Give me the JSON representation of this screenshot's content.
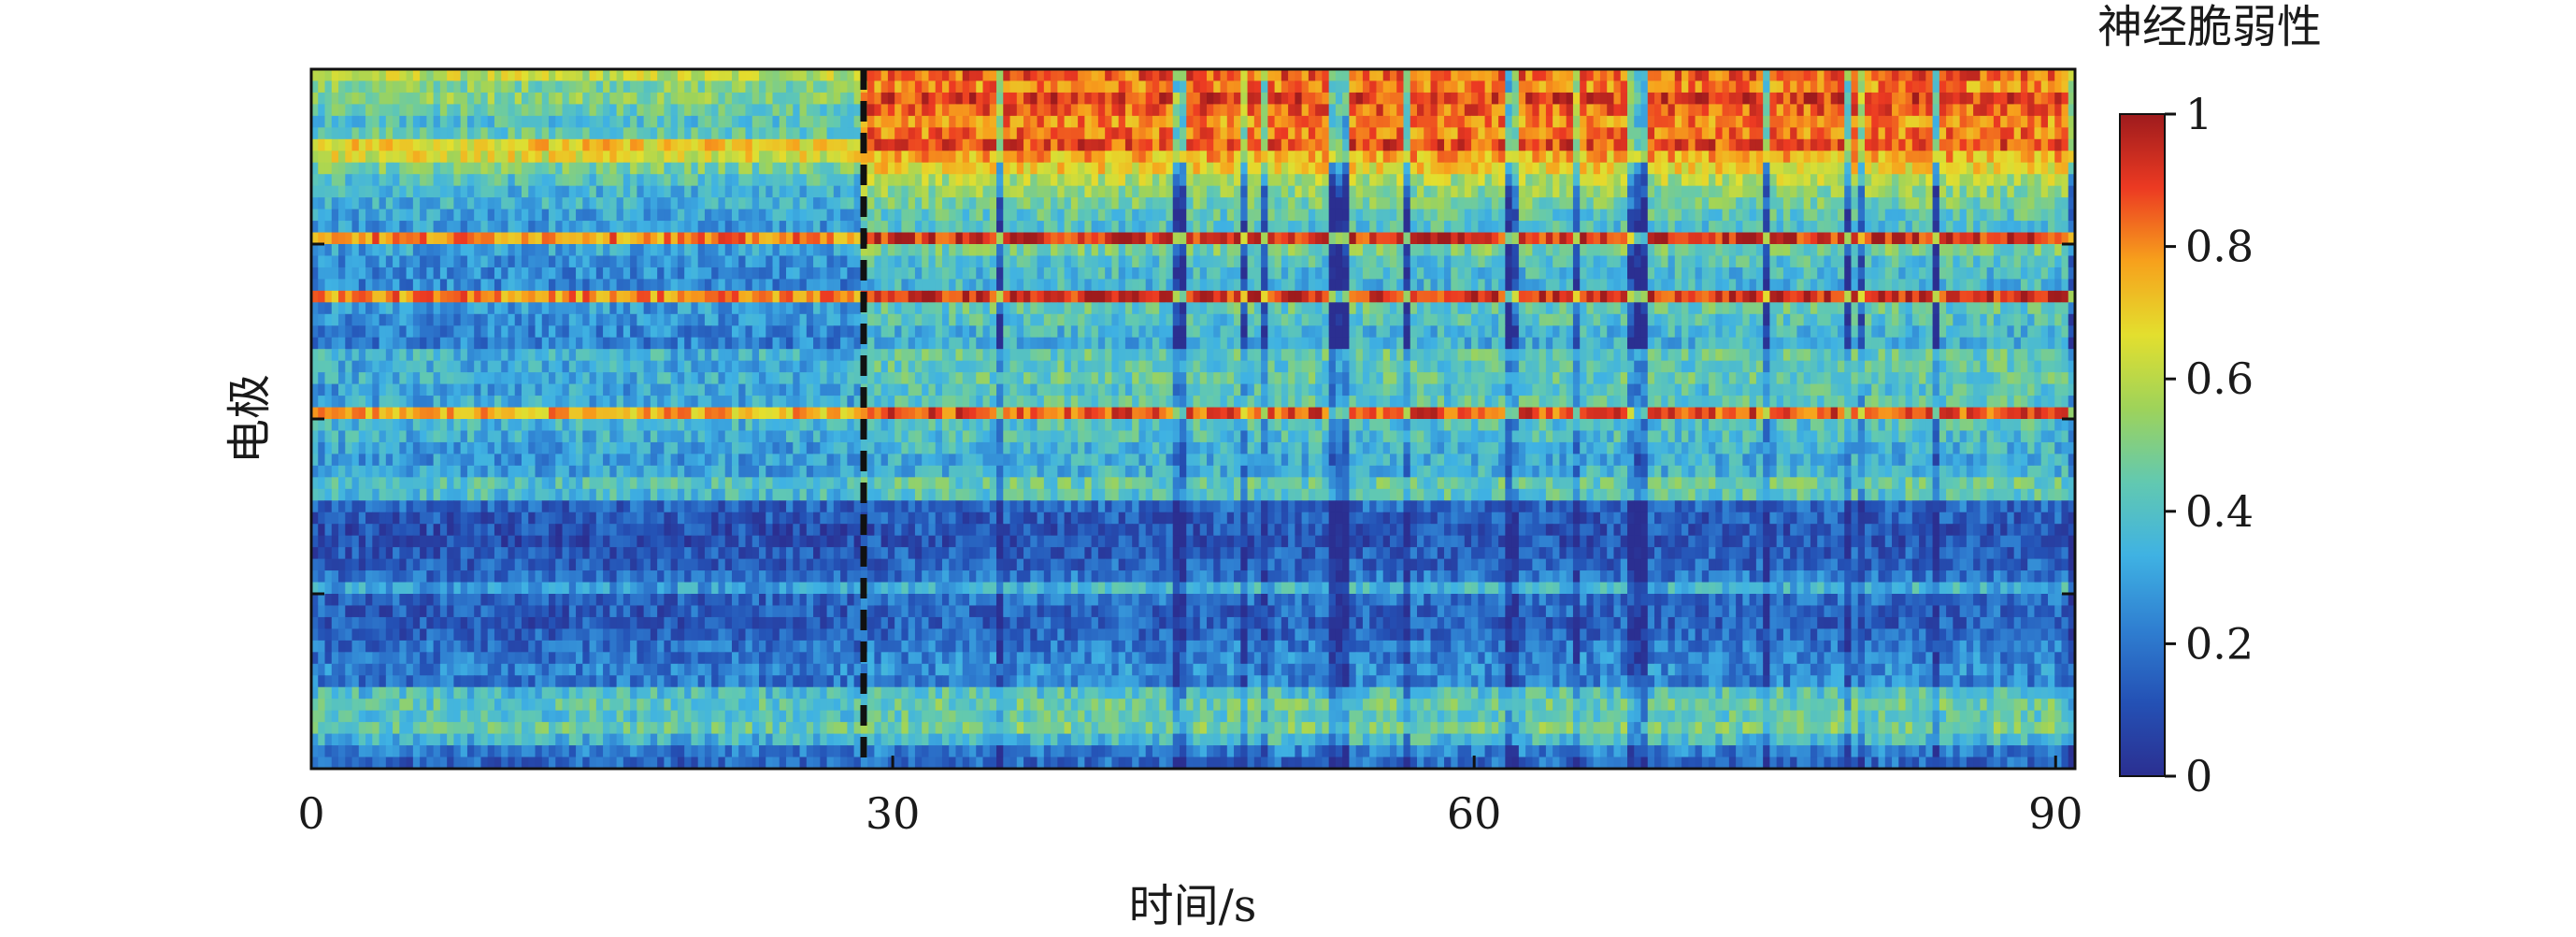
{
  "chart_data": {
    "type": "heatmap",
    "title": "",
    "xlabel": "时间/s",
    "ylabel": "电极",
    "x_range": [
      0,
      91
    ],
    "x_ticks": [
      0,
      30,
      60,
      90
    ],
    "y_ticks_labeled": false,
    "n_electrodes": 60,
    "onset_marker": {
      "x": 28.5,
      "style": "dashed",
      "color": "#111111"
    },
    "colorbar": {
      "label": "神经脆弱性",
      "range": [
        0,
        1
      ],
      "ticks": [
        0,
        0.2,
        0.4,
        0.6,
        0.8,
        1
      ]
    },
    "colormap": [
      "#2b2f91",
      "#2451b5",
      "#2f7fd1",
      "#3fb2e3",
      "#62c9b0",
      "#9ed35a",
      "#e3df2e",
      "#f7a11c",
      "#ec3a22",
      "#9e1b1d"
    ],
    "electrode_baseline": [
      0.6,
      0.5,
      0.52,
      0.45,
      0.4,
      0.44,
      0.7,
      0.65,
      0.48,
      0.4,
      0.36,
      0.34,
      0.3,
      0.28,
      0.8,
      0.3,
      0.26,
      0.25,
      0.24,
      0.8,
      0.28,
      0.26,
      0.24,
      0.22,
      0.35,
      0.33,
      0.34,
      0.3,
      0.32,
      0.75,
      0.35,
      0.34,
      0.3,
      0.28,
      0.3,
      0.4,
      0.38,
      0.15,
      0.12,
      0.1,
      0.1,
      0.12,
      0.14,
      0.18,
      0.3,
      0.15,
      0.13,
      0.12,
      0.14,
      0.18,
      0.2,
      0.22,
      0.2,
      0.38,
      0.42,
      0.4,
      0.44,
      0.35,
      0.2,
      0.15
    ],
    "electrode_seizure_gain": [
      0.25,
      0.3,
      0.38,
      0.4,
      0.4,
      0.38,
      0.18,
      0.1,
      0.2,
      0.18,
      0.16,
      0.14,
      0.12,
      0.12,
      0.12,
      0.18,
      0.14,
      0.12,
      0.12,
      0.12,
      0.16,
      0.14,
      0.12,
      0.12,
      0.1,
      0.1,
      0.1,
      0.1,
      0.1,
      0.12,
      0.05,
      0.05,
      0.05,
      0.05,
      0.05,
      0.05,
      0.04,
      0.02,
      0.02,
      0.02,
      0.02,
      0.02,
      0.02,
      0.02,
      0.05,
      0.04,
      0.03,
      0.03,
      0.03,
      0.03,
      0.03,
      0.03,
      0.03,
      0.03,
      0.04,
      0.04,
      0.04,
      0.03,
      0.02,
      0.02
    ]
  }
}
